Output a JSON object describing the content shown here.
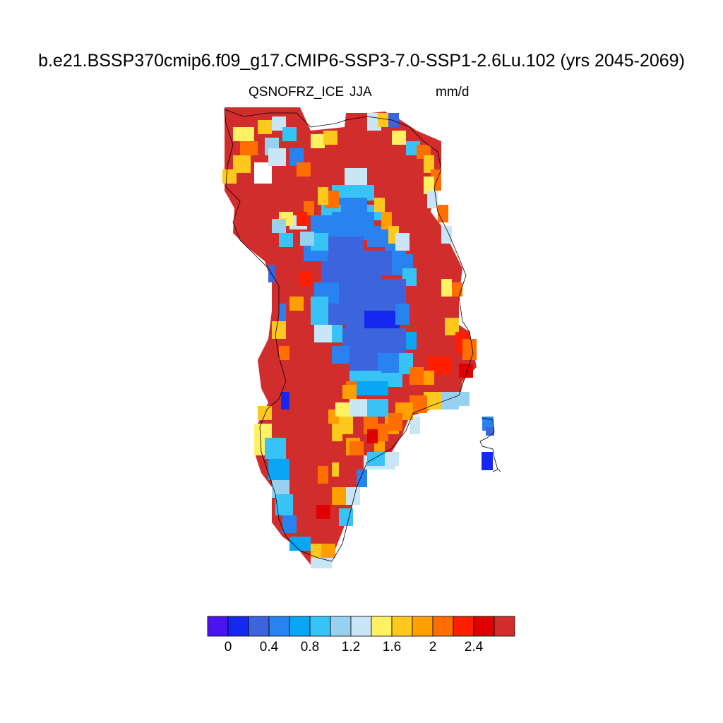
{
  "title": "b.e21.BSSP370cmip6.f09_g17.CMIP6-SSP3-7.0-SSP1-2.6Lu.102 (yrs 2045-2069)",
  "variable": "QSNOFRZ_ICE",
  "season": "JJA",
  "units": "mm/d",
  "colorbar": {
    "colors": [
      "#4a14f0",
      "#1428f0",
      "#3c64dc",
      "#2882f0",
      "#0aa5f5",
      "#37c3f5",
      "#96d2f0",
      "#c8e6f5",
      "#fff064",
      "#ffc81e",
      "#ffa000",
      "#ff6e00",
      "#ff1e00",
      "#e10000",
      "#d22d2d"
    ],
    "tick_labels": [
      "0",
      "0.4",
      "0.8",
      "1.2",
      "1.6",
      "2",
      "2.4"
    ]
  },
  "map_data": {
    "field": "QSNOFRZ_ICE",
    "region": "Greenland",
    "summary": "Central ice sheet interior low (blue, ~0-0.8 mm/d, minimum ~0.2 near center); broad margin band high (red, >2.4 mm/d); orange/yellow transition zones at edges."
  }
}
